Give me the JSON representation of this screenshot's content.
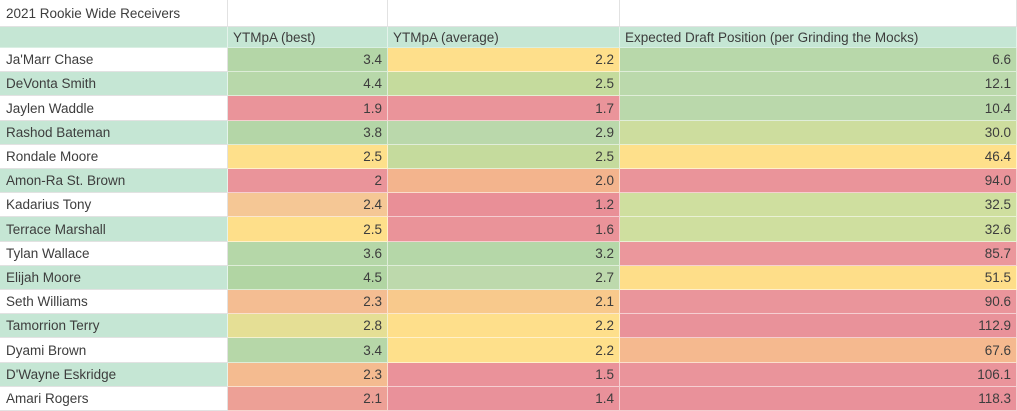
{
  "title": "2021 Rookie Wide Receivers",
  "columns": {
    "name_header": "",
    "best_header": "YTMpA (best)",
    "avg_header": "YTMpA (average)",
    "edp_header": "Expected Draft Position (per Grinding the Mocks)"
  },
  "colors": {
    "banding_teal": "#c5e6d4",
    "gridline": "#e2e2e2",
    "text": "#3d3d3d",
    "white": "#ffffff"
  },
  "players": [
    {
      "name": "Ja'Marr Chase",
      "band": "white",
      "best": "3.4",
      "best_color": "#b4d6a7",
      "avg": "2.2",
      "avg_color": "#fedf8b",
      "edp": "6.6",
      "edp_color": "#b8d8aa"
    },
    {
      "name": "DeVonta Smith",
      "band": "teal",
      "best": "4.4",
      "best_color": "#b8d8aa",
      "avg": "2.5",
      "avg_color": "#c5db9d",
      "edp": "12.1",
      "edp_color": "#bbd9ac"
    },
    {
      "name": "Jaylen Waddle",
      "band": "white",
      "best": "1.9",
      "best_color": "#ea949a",
      "avg": "1.7",
      "avg_color": "#ea949a",
      "edp": "10.4",
      "edp_color": "#bad8ab"
    },
    {
      "name": "Rashod Bateman",
      "band": "teal",
      "best": "3.8",
      "best_color": "#b4d6a7",
      "avg": "2.9",
      "avg_color": "#bad8ab",
      "edp": "30.0",
      "edp_color": "#cddd9e"
    },
    {
      "name": "Rondale Moore",
      "band": "white",
      "best": "2.5",
      "best_color": "#fee08b",
      "avg": "2.5",
      "avg_color": "#c5db9d",
      "edp": "46.4",
      "edp_color": "#fee08b"
    },
    {
      "name": "Amon-Ra St. Brown",
      "band": "teal",
      "best": "2",
      "best_color": "#ea949a",
      "avg": "2.0",
      "avg_color": "#f3b48d",
      "edp": "94.0",
      "edp_color": "#ea949a"
    },
    {
      "name": "Kadarius Tony",
      "band": "white",
      "best": "2.4",
      "best_color": "#f5c795",
      "avg": "1.2",
      "avg_color": "#e98f97",
      "edp": "32.5",
      "edp_color": "#cfdf9f"
    },
    {
      "name": "Terrace Marshall",
      "band": "teal",
      "best": "2.5",
      "best_color": "#fedf8a",
      "avg": "1.6",
      "avg_color": "#ea9399",
      "edp": "32.6",
      "edp_color": "#cfdf9f"
    },
    {
      "name": "Tylan Wallace",
      "band": "white",
      "best": "3.6",
      "best_color": "#b5d7a8",
      "avg": "3.2",
      "avg_color": "#b5d7a8",
      "edp": "85.7",
      "edp_color": "#eb979c"
    },
    {
      "name": "Elijah Moore",
      "band": "teal",
      "best": "4.5",
      "best_color": "#b1d5a3",
      "avg": "2.7",
      "avg_color": "#bdd9ac",
      "edp": "51.5",
      "edp_color": "#fede89"
    },
    {
      "name": "Seth Williams",
      "band": "white",
      "best": "2.3",
      "best_color": "#f4bd92",
      "avg": "2.1",
      "avg_color": "#f8c98c",
      "edp": "90.6",
      "edp_color": "#ea959b"
    },
    {
      "name": "Tamorrion Terry",
      "band": "teal",
      "best": "2.8",
      "best_color": "#e5df95",
      "avg": "2.2",
      "avg_color": "#fedf8b",
      "edp": "112.9",
      "edp_color": "#e9929a"
    },
    {
      "name": "Dyami Brown",
      "band": "white",
      "best": "3.4",
      "best_color": "#b6d7a8",
      "avg": "2.2",
      "avg_color": "#fee08b",
      "edp": "67.6",
      "edp_color": "#f5b98f"
    },
    {
      "name": "D'Wayne  Eskridge",
      "band": "teal",
      "best": "2.3",
      "best_color": "#f4bb90",
      "avg": "1.5",
      "avg_color": "#ea929a",
      "edp": "106.1",
      "edp_color": "#ea949b"
    },
    {
      "name": "Amari Rogers",
      "band": "white",
      "best": "2.1",
      "best_color": "#eda096",
      "avg": "1.4",
      "avg_color": "#e9919a",
      "edp": "118.3",
      "edp_color": "#e9919a"
    }
  ]
}
